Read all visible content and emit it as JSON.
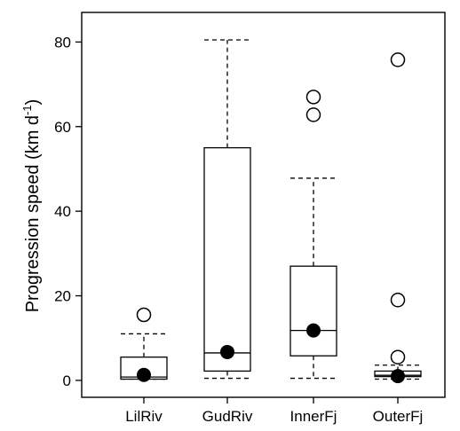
{
  "chart_data": {
    "type": "box",
    "title": "",
    "xlabel": "",
    "ylabel": "Progression speed (km d",
    "ylabel_sup": "-1",
    "ylabel_close": ")",
    "ylim": [
      -4,
      87
    ],
    "yticks": [
      0,
      20,
      40,
      60,
      80
    ],
    "grid": false,
    "categories": [
      "LilRiv",
      "GudRiv",
      "InnerFj",
      "OuterFj"
    ],
    "boxes": [
      {
        "name": "LilRiv",
        "whisker_low": 0.3,
        "q1": 0.3,
        "median": 0.8,
        "q3": 5.5,
        "whisker_high": 11.0,
        "mean": 1.3,
        "outliers": [
          15.5
        ]
      },
      {
        "name": "GudRiv",
        "whisker_low": 0.5,
        "q1": 2.2,
        "median": 6.5,
        "q3": 55.0,
        "whisker_high": 80.5,
        "mean": 6.7,
        "outliers": []
      },
      {
        "name": "InnerFj",
        "whisker_low": 0.5,
        "q1": 5.8,
        "median": 11.8,
        "q3": 27.0,
        "whisker_high": 47.8,
        "mean": 11.8,
        "outliers": [
          62.8,
          67.0
        ]
      },
      {
        "name": "OuterFj",
        "whisker_low": 0.3,
        "q1": 0.9,
        "median": 1.2,
        "q3": 2.2,
        "whisker_high": 3.6,
        "mean": 1.0,
        "outliers": [
          5.5,
          19.0,
          75.8
        ]
      }
    ]
  }
}
